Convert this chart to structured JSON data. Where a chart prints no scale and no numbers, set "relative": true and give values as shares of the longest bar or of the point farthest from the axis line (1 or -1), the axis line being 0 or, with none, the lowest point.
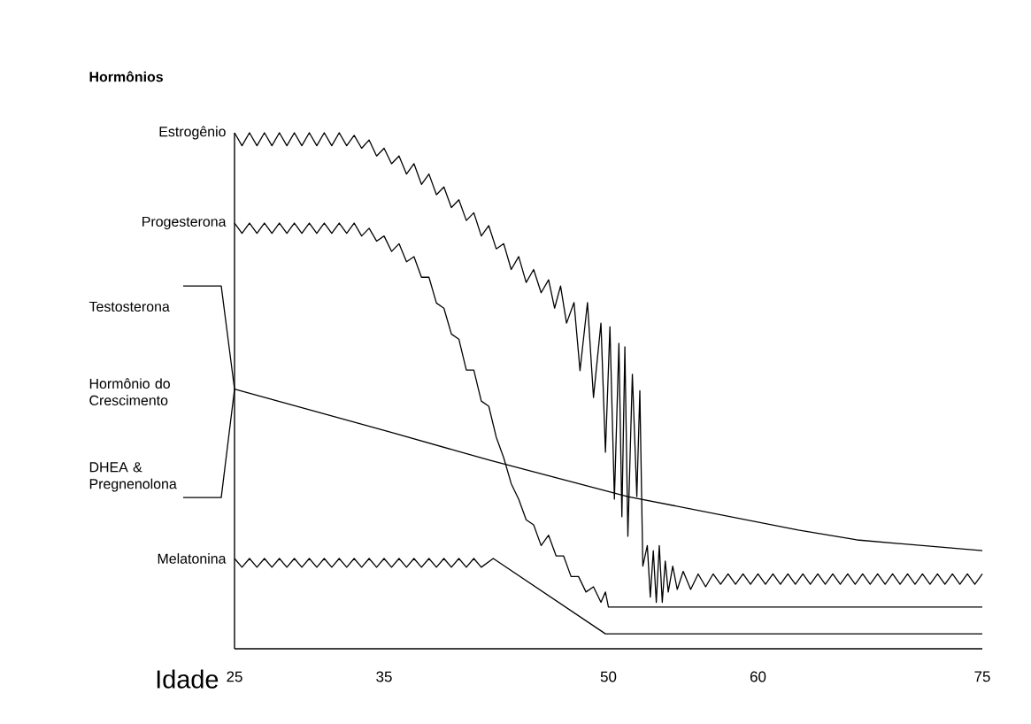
{
  "chart_data": {
    "type": "line",
    "title": "Hormônios",
    "xlabel": "Idade",
    "relative": true,
    "marker": "none",
    "xlim": [
      25,
      75
    ],
    "xticks": [
      25,
      35,
      50,
      60,
      75
    ],
    "annotations": [
      "Testosterona",
      "Hormônio do Crescimento",
      "DHEA & Pregnenolona"
    ],
    "series": [
      {
        "name": "Estrogênio",
        "color": "#000000",
        "x": [
          25,
          25.5,
          26,
          26.5,
          27,
          27.5,
          28,
          28.5,
          29,
          29.5,
          30,
          30.5,
          31,
          31.5,
          32,
          32.5,
          33,
          33.5,
          34,
          34.5,
          35,
          35.5,
          36,
          36.5,
          37,
          37.5,
          38,
          38.5,
          39,
          39.5,
          40,
          40.5,
          41,
          41.5,
          42,
          42.5,
          43,
          43.5,
          44,
          44.5,
          45,
          45.5,
          46,
          46.4,
          46.8,
          47.2,
          47.7,
          48.1,
          48.6,
          49,
          49.5,
          49.8,
          50.1,
          50.4,
          50.7,
          50.9,
          51.1,
          51.3,
          51.6,
          51.9,
          52.1,
          52.3,
          52.6,
          52.8,
          53,
          53.2,
          53.4,
          53.6,
          53.8,
          54,
          54.3,
          54.6,
          55,
          55.5,
          56,
          56.5,
          57,
          57.5,
          58,
          58.5,
          59,
          59.5,
          60,
          60.5,
          61,
          61.5,
          62,
          62.5,
          63,
          63.5,
          64,
          64.5,
          65,
          65.5,
          66,
          66.5,
          67,
          67.5,
          68,
          68.5,
          69,
          69.5,
          70,
          70.5,
          71,
          71.5,
          72,
          72.5,
          73,
          73.5,
          74,
          74.5,
          75
        ],
        "values": [
          1,
          0.975,
          1,
          0.975,
          1,
          0.975,
          1,
          0.975,
          1,
          0.975,
          1,
          0.975,
          1,
          0.975,
          1,
          0.975,
          0.995,
          0.97,
          0.986,
          0.955,
          0.97,
          0.94,
          0.955,
          0.92,
          0.94,
          0.9,
          0.92,
          0.88,
          0.895,
          0.855,
          0.87,
          0.83,
          0.845,
          0.8,
          0.82,
          0.775,
          0.785,
          0.735,
          0.76,
          0.71,
          0.735,
          0.69,
          0.715,
          0.66,
          0.703,
          0.631,
          0.671,
          0.539,
          0.671,
          0.487,
          0.631,
          0.381,
          0.624,
          0.29,
          0.592,
          0.256,
          0.585,
          0.218,
          0.532,
          0.295,
          0.5,
          0.16,
          0.2,
          0.1,
          0.19,
          0.09,
          0.2,
          0.09,
          0.17,
          0.11,
          0.16,
          0.115,
          0.15,
          0.115,
          0.145,
          0.12,
          0.145,
          0.125,
          0.145,
          0.125,
          0.145,
          0.125,
          0.145,
          0.125,
          0.145,
          0.125,
          0.145,
          0.125,
          0.145,
          0.125,
          0.145,
          0.125,
          0.145,
          0.125,
          0.145,
          0.125,
          0.145,
          0.125,
          0.145,
          0.125,
          0.145,
          0.125,
          0.145,
          0.125,
          0.145,
          0.125,
          0.145,
          0.125,
          0.145,
          0.125,
          0.145,
          0.125,
          0.145
        ]
      },
      {
        "name": "Progesterona",
        "color": "#000000",
        "x": [
          25,
          25.5,
          26,
          26.5,
          27,
          27.5,
          28,
          28.5,
          29,
          29.5,
          30,
          30.5,
          31,
          31.5,
          32,
          32.5,
          33,
          33.5,
          34,
          34.5,
          35,
          35.5,
          36,
          36.5,
          37,
          37.5,
          38,
          38.5,
          39,
          39.5,
          40,
          40.5,
          41,
          41.5,
          42,
          42.5,
          43,
          43.5,
          44,
          44.5,
          45,
          45.5,
          46,
          46.5,
          47,
          47.5,
          48,
          48.5,
          49,
          49.5,
          49.8,
          50,
          75
        ],
        "values": [
          0.825,
          0.805,
          0.825,
          0.805,
          0.825,
          0.805,
          0.825,
          0.805,
          0.825,
          0.805,
          0.825,
          0.805,
          0.825,
          0.805,
          0.825,
          0.805,
          0.825,
          0.8,
          0.815,
          0.79,
          0.8,
          0.77,
          0.785,
          0.75,
          0.76,
          0.72,
          0.72,
          0.67,
          0.66,
          0.61,
          0.6,
          0.54,
          0.54,
          0.48,
          0.47,
          0.41,
          0.37,
          0.32,
          0.29,
          0.25,
          0.24,
          0.2,
          0.22,
          0.18,
          0.18,
          0.14,
          0.14,
          0.11,
          0.12,
          0.09,
          0.11,
          0.081,
          0.081
        ]
      },
      {
        "color": "#000000",
        "x": [
          25,
          35.4,
          42.1,
          51.3,
          62.7,
          66.6,
          75
        ],
        "values": [
          0.503,
          0.42,
          0.365,
          0.295,
          0.23,
          0.211,
          0.19
        ]
      },
      {
        "name": "Melatonina",
        "color": "#000000",
        "x": [
          25,
          25.5,
          26,
          26.5,
          27,
          27.5,
          28,
          28.5,
          29,
          29.5,
          30,
          30.5,
          31,
          31.5,
          32,
          32.5,
          33,
          33.5,
          34,
          34.5,
          35,
          35.5,
          36,
          36.5,
          37,
          37.5,
          38,
          38.5,
          39,
          39.5,
          40,
          40.5,
          41,
          41.5,
          42.3,
          49.8,
          75
        ],
        "values": [
          0.175,
          0.158,
          0.175,
          0.158,
          0.175,
          0.158,
          0.175,
          0.158,
          0.175,
          0.158,
          0.175,
          0.158,
          0.175,
          0.158,
          0.175,
          0.158,
          0.175,
          0.158,
          0.175,
          0.158,
          0.175,
          0.158,
          0.175,
          0.158,
          0.175,
          0.158,
          0.175,
          0.158,
          0.175,
          0.158,
          0.175,
          0.158,
          0.175,
          0.158,
          0.175,
          0.029,
          0.029
        ]
      }
    ]
  }
}
